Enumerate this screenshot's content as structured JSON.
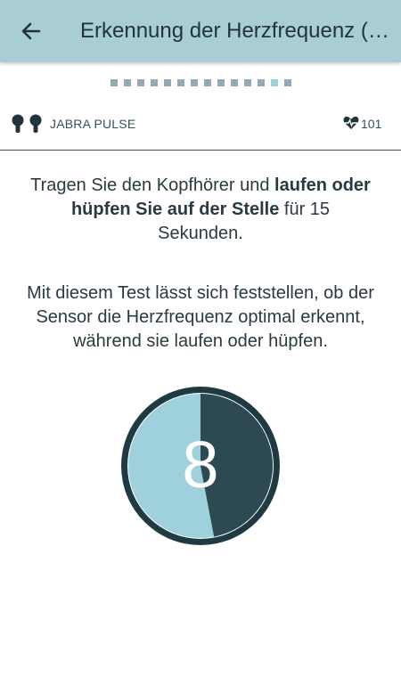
{
  "header": {
    "back_icon": "arrow-left-icon",
    "title": "Erkennung der Herzfrequenz (…"
  },
  "progress": {
    "total_steps": 14,
    "current_step": 13
  },
  "device": {
    "icon": "earbuds-icon",
    "name": "JABRA PULSE",
    "heart_icon": "heart-rate-icon",
    "heart_rate": "101"
  },
  "instructions": {
    "part1": "Tragen Sie den Kopfhörer und ",
    "bold": "laufen oder hüpfen Sie auf der Stelle",
    "part2": " für 15 Sekunden."
  },
  "info_text": "Mit diesem Test lässt sich feststellen, ob der Sensor die Herzfrequenz optimal erkennt, während sie laufen oder hüpfen.",
  "timer": {
    "seconds_left": "8",
    "total_seconds": 15,
    "elapsed_fraction": 0.47,
    "colors": {
      "elapsed": "#2d4a52",
      "remaining": "#9fd1dc",
      "ring": "#1f3a42"
    }
  }
}
